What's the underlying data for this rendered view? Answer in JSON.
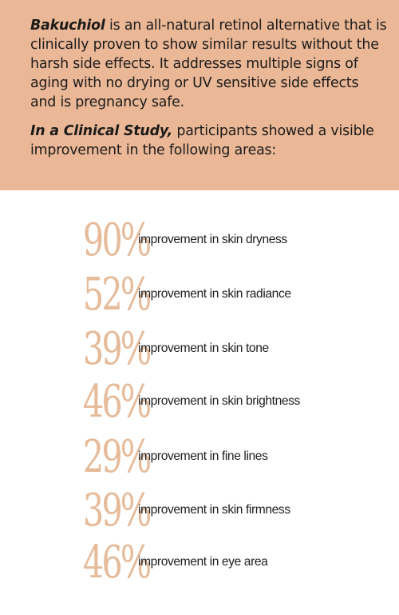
{
  "intro": {
    "brand_name": "Bakuchiol",
    "description": " is an all-natural retinol alternative that is clinically proven to show similar results without the harsh side effects. It addresses multiple signs of aging with no drying or UV sensitive side effects and is pregnancy safe.",
    "study_lead": "In a Clinical Study,",
    "study_text": " participants showed a visible improvement in the following areas:"
  },
  "colors": {
    "panel_background": "#ebb897",
    "percent_color": "#e6bb9a",
    "text_color": "#202020"
  },
  "results": [
    {
      "percent": "90%",
      "label": "improvement in skin dryness"
    },
    {
      "percent": "52%",
      "label": "improvement in skin radiance"
    },
    {
      "percent": "39%",
      "label": "improvement in skin tone"
    },
    {
      "percent": "46%",
      "label": "improvement in skin brightness"
    },
    {
      "percent": "29%",
      "label": "improvement in fine lines"
    },
    {
      "percent": "39%",
      "label": "improvement in skin firmness"
    },
    {
      "percent": "46%",
      "label": "improvement in eye area"
    }
  ]
}
